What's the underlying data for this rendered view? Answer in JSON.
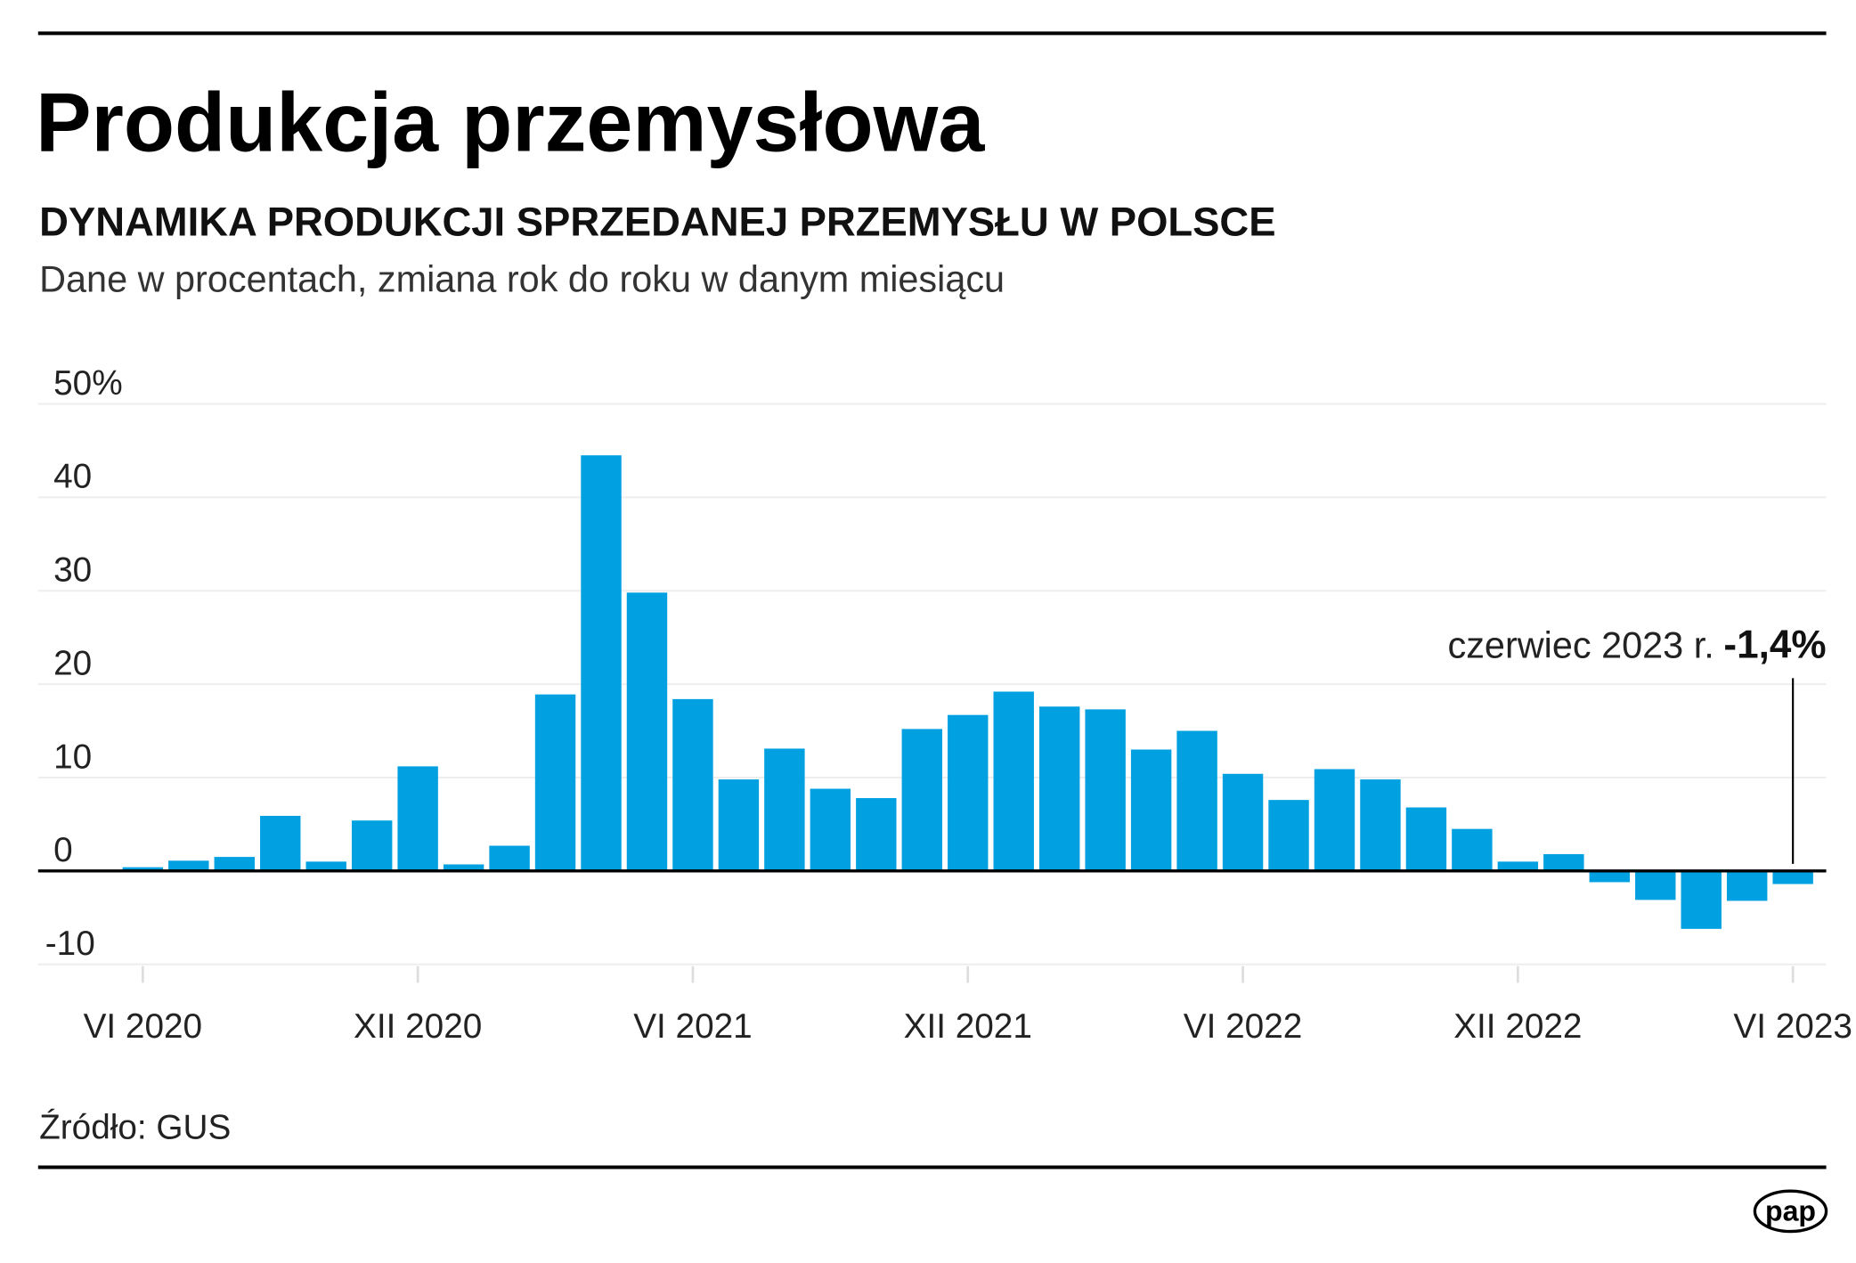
{
  "title": "Produkcja przemysłowa",
  "subtitle": "DYNAMIKA PRODUKCJI SPRZEDANEJ PRZEMYSŁU W POLSCE",
  "description": "Dane w procentach, zmiana rok do roku w danym miesiącu",
  "source": "Źródło: GUS",
  "logo_text": "pap",
  "colors": {
    "bar": "#00a0e1",
    "axis": "#000000",
    "grid": "#eeeeee"
  },
  "chart_data": {
    "type": "bar",
    "title": "DYNAMIKA PRODUKCJI SPRZEDANEJ PRZEMYSŁU W POLSCE",
    "ylabel": "Dane w procentach, zmiana rok do roku w danym miesiącu",
    "xlabel": "",
    "ylim": [
      -10,
      50
    ],
    "grid": true,
    "y_ticks": [
      {
        "v": 50,
        "label": "50%"
      },
      {
        "v": 40,
        "label": "40"
      },
      {
        "v": 30,
        "label": "30"
      },
      {
        "v": 20,
        "label": "20"
      },
      {
        "v": 10,
        "label": "10"
      },
      {
        "v": 0,
        "label": "0"
      },
      {
        "v": -10,
        "label": "-10"
      }
    ],
    "x_ticks": [
      {
        "i": 0,
        "label": "VI 2020"
      },
      {
        "i": 6,
        "label": "XII 2020"
      },
      {
        "i": 12,
        "label": "VI 2021"
      },
      {
        "i": 18,
        "label": "XII 2021"
      },
      {
        "i": 24,
        "label": "VI 2022"
      },
      {
        "i": 30,
        "label": "XII 2022"
      },
      {
        "i": 36,
        "label": "VI 2023"
      }
    ],
    "categories": [
      "VI 2020",
      "VII 2020",
      "VIII 2020",
      "IX 2020",
      "X 2020",
      "XI 2020",
      "XII 2020",
      "I 2021",
      "II 2021",
      "III 2021",
      "IV 2021",
      "V 2021",
      "VI 2021",
      "VII 2021",
      "VIII 2021",
      "IX 2021",
      "X 2021",
      "XI 2021",
      "XII 2021",
      "I 2022",
      "II 2022",
      "III 2022",
      "IV 2022",
      "V 2022",
      "VI 2022",
      "VII 2022",
      "VIII 2022",
      "IX 2022",
      "X 2022",
      "XI 2022",
      "XII 2022",
      "I 2023",
      "II 2023",
      "III 2023",
      "IV 2023",
      "V 2023",
      "VI 2023"
    ],
    "values": [
      0.4,
      1.1,
      1.5,
      5.9,
      1.0,
      5.4,
      11.2,
      0.7,
      2.7,
      18.9,
      44.5,
      29.8,
      18.4,
      9.8,
      13.1,
      8.8,
      7.8,
      15.2,
      16.7,
      19.2,
      17.6,
      17.3,
      13.0,
      15.0,
      10.4,
      7.6,
      10.9,
      9.8,
      6.8,
      4.5,
      1.0,
      1.8,
      -1.2,
      -3.1,
      -6.2,
      -3.2,
      -1.4
    ],
    "annotation": {
      "i": 36,
      "text": "czerwiec 2023 r.",
      "value": "-1,4%"
    }
  }
}
